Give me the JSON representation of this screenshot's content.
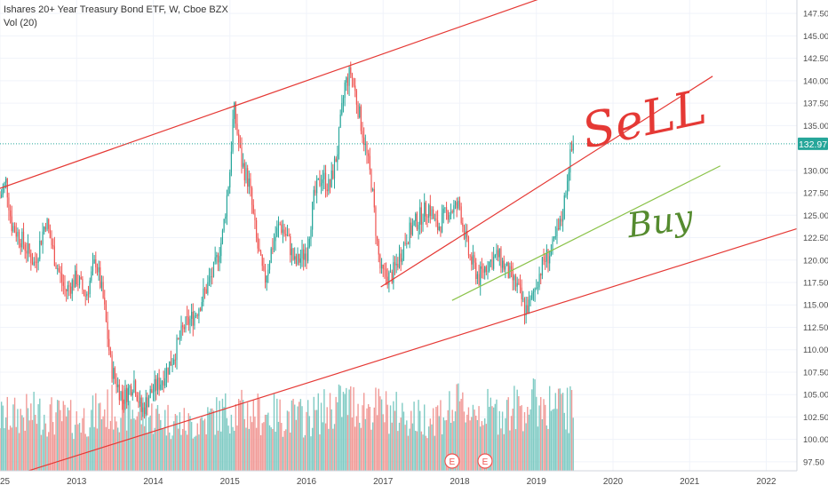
{
  "legend": {
    "title": "Ishares 20+ Year Treasury Bond ETF, W, Cboe BZX",
    "volume_label": "Vol (20)"
  },
  "price_tag": "132.97",
  "annotations": {
    "sell": "SeLL",
    "buy": "Buy"
  },
  "earnings_marker": "E",
  "colors": {
    "up": "#26a69a",
    "down": "#ef5350",
    "vol_up": "#80cbc4",
    "vol_down": "#f19a97",
    "channel": "#e53935",
    "buy_line": "#8bc34a",
    "tag": "#26a69a"
  },
  "chart_data": {
    "type": "candlestick",
    "title": "Ishares 20+ Year Treasury Bond ETF, W, Cboe BZX",
    "ylim": [
      96.5,
      149
    ],
    "y_ticks": [
      "97.50",
      "100.00",
      "102.50",
      "105.00",
      "107.50",
      "110.00",
      "112.50",
      "115.00",
      "117.50",
      "120.00",
      "122.50",
      "125.00",
      "127.50",
      "130.00",
      "132.97",
      "135.00",
      "137.50",
      "140.00",
      "142.50",
      "145.00",
      "147.50"
    ],
    "y_tick_values": [
      97.5,
      100,
      102.5,
      105,
      107.5,
      110,
      112.5,
      115,
      117.5,
      120,
      122.5,
      125,
      127.5,
      130,
      132.97,
      135,
      137.5,
      140,
      142.5,
      145,
      147.5
    ],
    "x_ticks": [
      "25",
      "2013",
      "2014",
      "2015",
      "2016",
      "2017",
      "2018",
      "2019",
      "2020",
      "2021",
      "2022"
    ],
    "x_tick_values": [
      2012.0,
      2013.0,
      2014.0,
      2015.0,
      2016.0,
      2017.0,
      2018.0,
      2019.0,
      2020.0,
      2021.0,
      2022.0
    ],
    "xlim": [
      2012.0,
      2022.4
    ],
    "last_price": 132.97,
    "price_path": [
      [
        2012.0,
        127.0
      ],
      [
        2012.08,
        128.8
      ],
      [
        2012.15,
        124.0
      ],
      [
        2012.3,
        122.0
      ],
      [
        2012.45,
        119.5
      ],
      [
        2012.6,
        124.5
      ],
      [
        2012.72,
        120.0
      ],
      [
        2012.85,
        116.5
      ],
      [
        2013.0,
        118.0
      ],
      [
        2013.12,
        116.0
      ],
      [
        2013.25,
        120.0
      ],
      [
        2013.35,
        115.5
      ],
      [
        2013.45,
        108.0
      ],
      [
        2013.6,
        104.5
      ],
      [
        2013.75,
        106.5
      ],
      [
        2013.85,
        103.0
      ],
      [
        2013.95,
        105.0
      ],
      [
        2014.1,
        106.5
      ],
      [
        2014.25,
        109.0
      ],
      [
        2014.4,
        112.5
      ],
      [
        2014.55,
        114.0
      ],
      [
        2014.7,
        117.0
      ],
      [
        2014.8,
        119.0
      ],
      [
        2014.9,
        122.5
      ],
      [
        2015.0,
        130.0
      ],
      [
        2015.05,
        137.0
      ],
      [
        2015.15,
        131.0
      ],
      [
        2015.25,
        128.5
      ],
      [
        2015.35,
        122.0
      ],
      [
        2015.45,
        117.5
      ],
      [
        2015.55,
        121.5
      ],
      [
        2015.65,
        124.0
      ],
      [
        2015.75,
        122.5
      ],
      [
        2015.85,
        119.5
      ],
      [
        2016.0,
        121.0
      ],
      [
        2016.1,
        127.0
      ],
      [
        2016.2,
        129.5
      ],
      [
        2016.3,
        128.0
      ],
      [
        2016.4,
        132.0
      ],
      [
        2016.5,
        139.5
      ],
      [
        2016.58,
        141.0
      ],
      [
        2016.65,
        138.0
      ],
      [
        2016.75,
        133.5
      ],
      [
        2016.85,
        128.5
      ],
      [
        2016.92,
        122.0
      ],
      [
        2016.97,
        118.5
      ],
      [
        2017.1,
        118.0
      ],
      [
        2017.2,
        120.0
      ],
      [
        2017.3,
        122.5
      ],
      [
        2017.45,
        124.5
      ],
      [
        2017.6,
        126.0
      ],
      [
        2017.7,
        123.5
      ],
      [
        2017.85,
        125.5
      ],
      [
        2018.0,
        126.0
      ],
      [
        2018.05,
        123.5
      ],
      [
        2018.12,
        120.5
      ],
      [
        2018.25,
        118.0
      ],
      [
        2018.35,
        119.5
      ],
      [
        2018.5,
        120.5
      ],
      [
        2018.6,
        119.0
      ],
      [
        2018.75,
        117.0
      ],
      [
        2018.85,
        114.5
      ],
      [
        2018.92,
        115.0
      ],
      [
        2019.0,
        117.5
      ],
      [
        2019.1,
        120.0
      ],
      [
        2019.2,
        121.0
      ],
      [
        2019.3,
        123.5
      ],
      [
        2019.35,
        125.5
      ],
      [
        2019.42,
        130.5
      ],
      [
        2019.48,
        132.97
      ]
    ],
    "volume_path": [
      [
        2012.0,
        0.35
      ],
      [
        2012.5,
        0.38
      ],
      [
        2013.0,
        0.33
      ],
      [
        2013.5,
        0.42
      ],
      [
        2014.0,
        0.36
      ],
      [
        2014.5,
        0.3
      ],
      [
        2015.0,
        0.4
      ],
      [
        2015.5,
        0.37
      ],
      [
        2016.0,
        0.35
      ],
      [
        2016.5,
        0.45
      ],
      [
        2017.0,
        0.4
      ],
      [
        2017.5,
        0.34
      ],
      [
        2018.0,
        0.42
      ],
      [
        2018.5,
        0.38
      ],
      [
        2019.0,
        0.45
      ],
      [
        2019.48,
        0.4
      ]
    ],
    "earnings_x": [
      2017.9,
      2018.33
    ],
    "trend_lines": [
      {
        "name": "upper-channel",
        "x1": 2012.0,
        "y1": 128.0,
        "x2": 2019.5,
        "y2": 150.5
      },
      {
        "name": "lower-channel",
        "x1": 2012.0,
        "y1": 95.5,
        "x2": 2022.4,
        "y2": 123.5
      },
      {
        "name": "mid-channel",
        "x1": 2016.97,
        "y1": 117.0,
        "x2": 2021.3,
        "y2": 140.5
      },
      {
        "name": "buy-line",
        "x1": 2017.9,
        "y1": 115.5,
        "x2": 2021.4,
        "y2": 130.5
      }
    ]
  }
}
